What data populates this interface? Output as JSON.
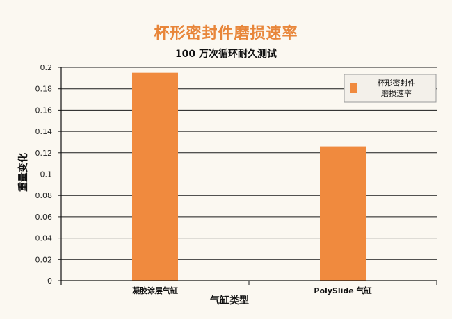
{
  "chart_data": {
    "type": "bar",
    "title": "杯形密封件磨损速率",
    "subtitle": "100 万次循环耐久测试",
    "xlabel": "气缸类型",
    "ylabel": "重量变化",
    "categories": [
      "凝胶涂层气缸",
      "PolySlide 气缸"
    ],
    "series": [
      {
        "name": "杯形密封件磨损速率",
        "values": [
          0.195,
          0.126
        ],
        "color": "#f08a3e"
      }
    ],
    "legend_lines": [
      "杯形密封件",
      "磨损速率"
    ],
    "ylim": [
      0,
      0.2
    ],
    "yticks": [
      "0",
      "0.02",
      "0.04",
      "0.06",
      "0.08",
      "0.1",
      "0.12",
      "0.14",
      "0.16",
      "0.18",
      "0.2"
    ],
    "grid": true,
    "legend_position": "top-right"
  }
}
